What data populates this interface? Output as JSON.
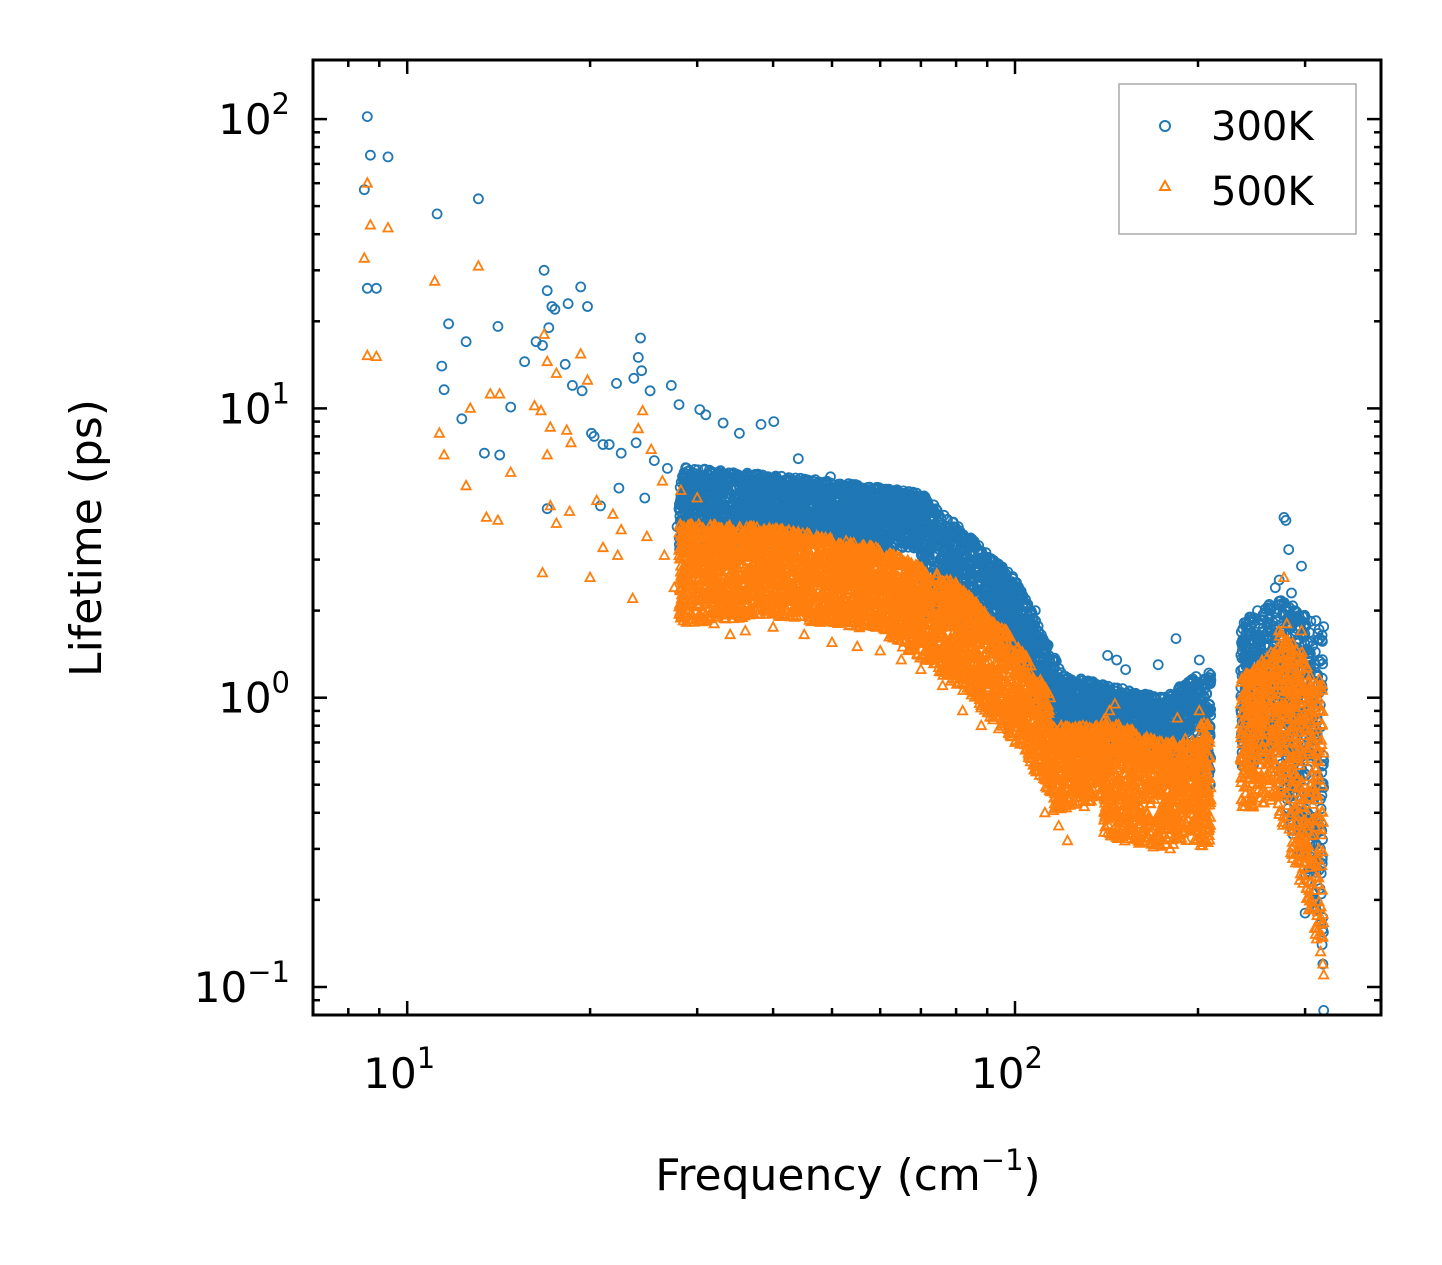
{
  "chart_data": {
    "type": "scatter",
    "title": "",
    "xlabel": "Frequency (cm",
    "xlabel_sup": "−1",
    "xlabel_end": ")",
    "ylabel": "Lifetime (ps)",
    "xscale": "log",
    "yscale": "log",
    "xlim": [
      7,
      400
    ],
    "ylim": [
      0.08,
      160
    ],
    "x_ticks": [
      {
        "value": 10,
        "base": "10",
        "exp": "1"
      },
      {
        "value": 100,
        "base": "10",
        "exp": "2"
      }
    ],
    "y_ticks": [
      {
        "value": 0.1,
        "base": "10",
        "exp": "−1"
      },
      {
        "value": 1,
        "base": "10",
        "exp": "0"
      },
      {
        "value": 10,
        "base": "10",
        "exp": "1"
      },
      {
        "value": 100,
        "base": "10",
        "exp": "2"
      }
    ],
    "legend_position": "top-right",
    "series": [
      {
        "name": "300K",
        "marker": "circle",
        "color": "#1f77b4",
        "points": [
          [
            8.6,
            102
          ],
          [
            8.7,
            75
          ],
          [
            9.3,
            74
          ],
          [
            8.5,
            57
          ],
          [
            8.6,
            26
          ],
          [
            8.9,
            26
          ],
          [
            11.2,
            47
          ],
          [
            13.1,
            53
          ],
          [
            11.7,
            19.6
          ],
          [
            12.5,
            17
          ],
          [
            14.1,
            19.2
          ],
          [
            11.4,
            14
          ],
          [
            11.5,
            11.6
          ],
          [
            12.3,
            9.2
          ],
          [
            13.4,
            7.0
          ],
          [
            14.2,
            6.9
          ],
          [
            14.8,
            10.1
          ],
          [
            16.8,
            30
          ],
          [
            17.0,
            25.5
          ],
          [
            17.3,
            22.5
          ],
          [
            17.5,
            22
          ],
          [
            18.4,
            23
          ],
          [
            19.3,
            26.3
          ],
          [
            19.8,
            22.5
          ],
          [
            16.3,
            17
          ],
          [
            16.7,
            16.5
          ],
          [
            15.6,
            14.5
          ],
          [
            17.1,
            19
          ],
          [
            18.2,
            14.2
          ],
          [
            18.7,
            12
          ],
          [
            19.4,
            11.5
          ],
          [
            20.1,
            8.2
          ],
          [
            21.0,
            7.5
          ],
          [
            22.1,
            12.2
          ],
          [
            24.2,
            17.5
          ],
          [
            24.0,
            15
          ],
          [
            24.3,
            13.5
          ],
          [
            23.6,
            12.7
          ],
          [
            25.1,
            11.5
          ],
          [
            27.2,
            12
          ],
          [
            28.0,
            10.3
          ],
          [
            30.3,
            9.9
          ],
          [
            31.0,
            9.5
          ],
          [
            33.1,
            8.9
          ],
          [
            35.2,
            8.2
          ],
          [
            38.2,
            8.8
          ],
          [
            40.1,
            9.0
          ],
          [
            44.0,
            6.7
          ],
          [
            49.7,
            5.8
          ],
          [
            20.3,
            8.0
          ],
          [
            21.5,
            7.5
          ],
          [
            22.5,
            7.0
          ],
          [
            23.8,
            7.6
          ],
          [
            25.5,
            6.6
          ],
          [
            26.8,
            6.2
          ],
          [
            22.3,
            5.3
          ],
          [
            20.8,
            4.6
          ],
          [
            24.6,
            4.9
          ],
          [
            27.8,
            3.9
          ],
          [
            17.0,
            4.5
          ],
          [
            54,
            4.9
          ],
          [
            60,
            4.6
          ],
          [
            66,
            4.3
          ],
          [
            70,
            4.5
          ],
          [
            78,
            3.3
          ],
          [
            85,
            2.9
          ],
          [
            90,
            2.6
          ],
          [
            98,
            2.4
          ],
          [
            103,
            2.2
          ],
          [
            108,
            2.0
          ],
          [
            113,
            1.5
          ],
          [
            118,
            1.1
          ],
          [
            122,
            0.95
          ],
          [
            128,
            0.9
          ],
          [
            135,
            1.05
          ],
          [
            142,
            1.4
          ],
          [
            147,
            1.35
          ],
          [
            152,
            1.25
          ],
          [
            160,
            1.0
          ],
          [
            166,
            0.9
          ],
          [
            172,
            1.3
          ],
          [
            180,
            0.75
          ],
          [
            184,
            1.6
          ],
          [
            190,
            1.1
          ],
          [
            196,
            0.8
          ],
          [
            201,
            1.35
          ],
          [
            206,
            0.9
          ],
          [
            208,
            0.7
          ],
          [
            240,
            1.75
          ],
          [
            246,
            1.4
          ],
          [
            250,
            1.2
          ],
          [
            256,
            1.9
          ],
          [
            262,
            2.1
          ],
          [
            268,
            2.4
          ],
          [
            272,
            2.55
          ],
          [
            277,
            4.2
          ],
          [
            279,
            4.1
          ],
          [
            282,
            3.25
          ],
          [
            285,
            2.3
          ],
          [
            288,
            2.0
          ],
          [
            296,
            2.85
          ],
          [
            300,
            1.9
          ],
          [
            303,
            1.55
          ],
          [
            306,
            1.2
          ],
          [
            310,
            0.95
          ],
          [
            314,
            0.85
          ],
          [
            318,
            0.3
          ],
          [
            320,
            0.14
          ],
          [
            321,
            0.12
          ],
          [
            322,
            0.083
          ],
          [
            294,
            0.29
          ],
          [
            300,
            0.18
          ]
        ],
        "bands": [
          {
            "x": [
              28,
              50
            ],
            "y_lo": [
              3.2,
              3.5
            ],
            "y_hi": [
              6.3,
              5.6
            ]
          },
          {
            "x": [
              50,
              70
            ],
            "y_lo": [
              3.0,
              3.3
            ],
            "y_hi": [
              5.6,
              5.1
            ]
          },
          {
            "x": [
              70,
              100
            ],
            "y_lo": [
              2.0,
              1.4
            ],
            "y_hi": [
              5.1,
              2.6
            ]
          },
          {
            "x": [
              100,
              120
            ],
            "y_lo": [
              1.4,
              0.65
            ],
            "y_hi": [
              2.6,
              1.2
            ]
          },
          {
            "x": [
              120,
              175
            ],
            "y_lo": [
              0.65,
              0.6
            ],
            "y_hi": [
              1.2,
              1.0
            ]
          },
          {
            "x": [
              175,
              200
            ],
            "y_lo": [
              0.5,
              0.55
            ],
            "y_hi": [
              1.0,
              1.2
            ]
          },
          {
            "x": [
              200,
              210
            ],
            "y_lo": [
              0.45,
              0.5
            ],
            "y_hi": [
              1.2,
              1.3
            ]
          },
          {
            "x": [
              235,
              270
            ],
            "y_lo": [
              0.55,
              0.65
            ],
            "y_hi": [
              1.8,
              2.3
            ]
          },
          {
            "x": [
              270,
              322
            ],
            "y_lo": [
              0.5,
              0.15
            ],
            "y_hi": [
              2.3,
              1.8
            ]
          }
        ]
      },
      {
        "name": "500K",
        "marker": "triangle",
        "color": "#ff7f0e",
        "points": [
          [
            8.6,
            60
          ],
          [
            8.5,
            33
          ],
          [
            8.7,
            43
          ],
          [
            9.3,
            42
          ],
          [
            8.6,
            15.2
          ],
          [
            8.9,
            15.1
          ],
          [
            11.1,
            27.5
          ],
          [
            13.1,
            31
          ],
          [
            11.3,
            8.2
          ],
          [
            11.5,
            6.9
          ],
          [
            12.7,
            10
          ],
          [
            12.5,
            5.4
          ],
          [
            13.5,
            4.2
          ],
          [
            14.1,
            4.1
          ],
          [
            14.2,
            11.2
          ],
          [
            14.8,
            6.0
          ],
          [
            13.7,
            11.2
          ],
          [
            16.8,
            18
          ],
          [
            17.0,
            14.5
          ],
          [
            17.6,
            13.2
          ],
          [
            18.3,
            8.4
          ],
          [
            19.3,
            15.4
          ],
          [
            16.2,
            10.2
          ],
          [
            16.6,
            9.8
          ],
          [
            17.2,
            8.6
          ],
          [
            18.6,
            7.6
          ],
          [
            19.8,
            12.5
          ],
          [
            17.0,
            6.9
          ],
          [
            16.7,
            2.7
          ],
          [
            17.2,
            4.6
          ],
          [
            17.6,
            4.0
          ],
          [
            18.5,
            4.4
          ],
          [
            20.0,
            2.6
          ],
          [
            21.0,
            3.3
          ],
          [
            22.2,
            3.1
          ],
          [
            23.5,
            2.2
          ],
          [
            24.0,
            8.5
          ],
          [
            24.4,
            9.8
          ],
          [
            25.2,
            7.2
          ],
          [
            26.3,
            5.6
          ],
          [
            28.2,
            5.2
          ],
          [
            30.0,
            4.9
          ],
          [
            20.5,
            4.8
          ],
          [
            21.8,
            4.3
          ],
          [
            22.5,
            3.8
          ],
          [
            24.8,
            3.6
          ],
          [
            26.5,
            3.1
          ],
          [
            27.5,
            2.4
          ],
          [
            29.0,
            2.0
          ],
          [
            30.5,
            1.9
          ],
          [
            32.0,
            1.8
          ],
          [
            34.0,
            1.65
          ],
          [
            36.0,
            1.7
          ],
          [
            40.0,
            1.75
          ],
          [
            45,
            1.65
          ],
          [
            50,
            1.55
          ],
          [
            55,
            1.5
          ],
          [
            60,
            1.45
          ],
          [
            65,
            1.35
          ],
          [
            70,
            1.25
          ],
          [
            76,
            1.1
          ],
          [
            82,
            0.9
          ],
          [
            88,
            0.8
          ],
          [
            94,
            0.78
          ],
          [
            100,
            0.7
          ],
          [
            106,
            0.6
          ],
          [
            112,
            0.4
          ],
          [
            118,
            0.36
          ],
          [
            122,
            0.32
          ],
          [
            130,
            0.42
          ],
          [
            138,
            0.55
          ],
          [
            143,
            0.9
          ],
          [
            146,
            0.95
          ],
          [
            150,
            0.5
          ],
          [
            158,
            0.34
          ],
          [
            165,
            0.33
          ],
          [
            170,
            0.31
          ],
          [
            180,
            0.3
          ],
          [
            185,
            0.85
          ],
          [
            190,
            0.5
          ],
          [
            195,
            0.35
          ],
          [
            201,
            0.9
          ],
          [
            205,
            0.32
          ],
          [
            208,
            0.35
          ],
          [
            240,
            1.2
          ],
          [
            246,
            0.45
          ],
          [
            250,
            0.52
          ],
          [
            258,
            1.1
          ],
          [
            265,
            1.3
          ],
          [
            272,
            1.5
          ],
          [
            277,
            2.6
          ],
          [
            280,
            1.8
          ],
          [
            285,
            1.3
          ],
          [
            290,
            0.95
          ],
          [
            296,
            1.7
          ],
          [
            300,
            1.3
          ],
          [
            306,
            0.9
          ],
          [
            310,
            0.7
          ],
          [
            316,
            0.3
          ],
          [
            320,
            0.15
          ],
          [
            321,
            0.12
          ],
          [
            322,
            0.11
          ]
        ],
        "bands": [
          {
            "x": [
              28,
              40
            ],
            "y_lo": [
              1.8,
              1.9
            ],
            "y_hi": [
              4.0,
              3.9
            ]
          },
          {
            "x": [
              40,
              60
            ],
            "y_lo": [
              1.9,
              1.7
            ],
            "y_hi": [
              3.9,
              3.3
            ]
          },
          {
            "x": [
              60,
              80
            ],
            "y_lo": [
              1.7,
              1.1
            ],
            "y_hi": [
              3.3,
              2.5
            ]
          },
          {
            "x": [
              80,
              100
            ],
            "y_lo": [
              1.1,
              0.7
            ],
            "y_hi": [
              2.5,
              1.6
            ]
          },
          {
            "x": [
              100,
              115
            ],
            "y_lo": [
              0.7,
              0.45
            ],
            "y_hi": [
              1.6,
              1.0
            ]
          },
          {
            "x": [
              115,
              140
            ],
            "y_lo": [
              0.4,
              0.45
            ],
            "y_hi": [
              0.8,
              0.8
            ]
          },
          {
            "x": [
              140,
              175
            ],
            "y_lo": [
              0.33,
              0.3
            ],
            "y_hi": [
              0.85,
              0.7
            ]
          },
          {
            "x": [
              175,
              200
            ],
            "y_lo": [
              0.3,
              0.32
            ],
            "y_hi": [
              0.7,
              0.75
            ]
          },
          {
            "x": [
              200,
              210
            ],
            "y_lo": [
              0.3,
              0.32
            ],
            "y_hi": [
              0.8,
              0.85
            ]
          },
          {
            "x": [
              235,
              270
            ],
            "y_lo": [
              0.4,
              0.45
            ],
            "y_hi": [
              1.2,
              1.5
            ]
          },
          {
            "x": [
              270,
              322
            ],
            "y_lo": [
              0.4,
              0.12
            ],
            "y_hi": [
              1.8,
              1.2
            ]
          }
        ]
      }
    ]
  }
}
